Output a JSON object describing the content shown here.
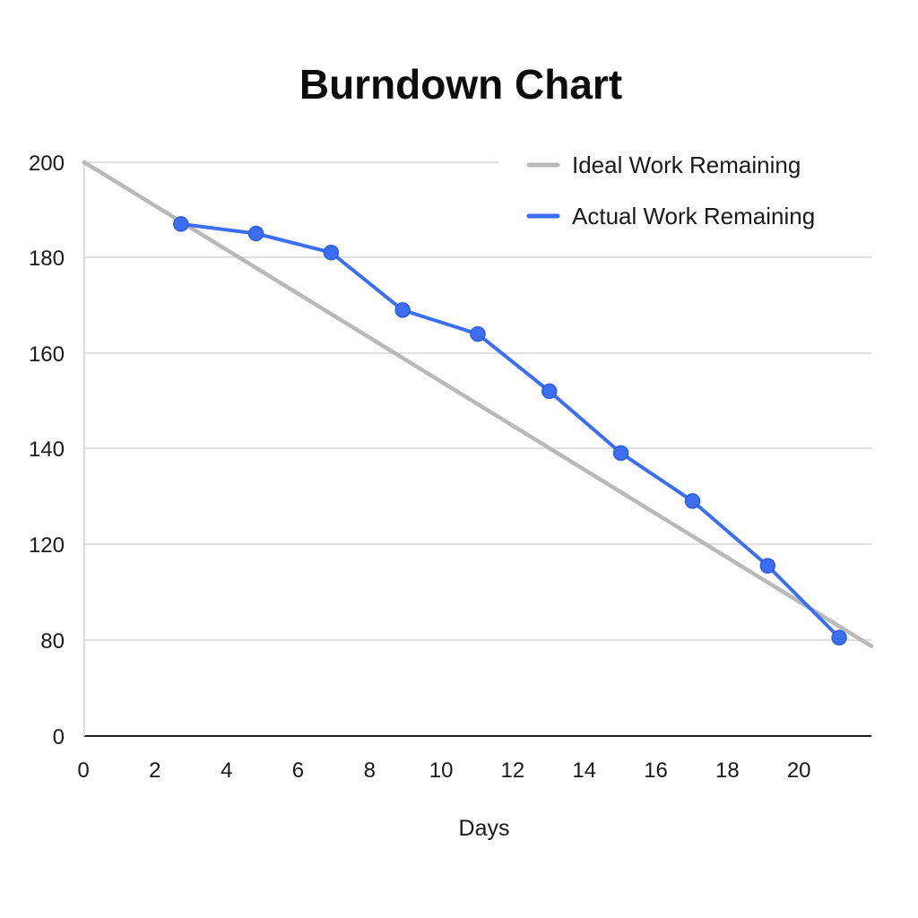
{
  "chart_data": {
    "type": "line",
    "title": "Burndown Chart",
    "xlabel": "Days",
    "ylabel": "",
    "x_ticks": [
      "0",
      "2",
      "4",
      "6",
      "8",
      "10",
      "12",
      "14",
      "16",
      "18",
      "20"
    ],
    "y_ticks": [
      "0",
      "80",
      "120",
      "140",
      "160",
      "180",
      "200"
    ],
    "xlim": [
      0,
      22
    ],
    "grid": true,
    "legend_position": "top-right",
    "series": [
      {
        "name": "Ideal Work Remaining",
        "color": "#b9b9b9",
        "markers": false,
        "points": [
          [
            0,
            200
          ],
          [
            22,
            75
          ]
        ]
      },
      {
        "name": "Actual Work Remaining",
        "color": "#3b6ef0",
        "markers": true,
        "points": [
          [
            2.7,
            187
          ],
          [
            4.8,
            185
          ],
          [
            6.9,
            181
          ],
          [
            8.9,
            169
          ],
          [
            11,
            164
          ],
          [
            13,
            152
          ],
          [
            15,
            139
          ],
          [
            17,
            129
          ],
          [
            19.1,
            111
          ],
          [
            21.1,
            81
          ]
        ]
      }
    ]
  }
}
